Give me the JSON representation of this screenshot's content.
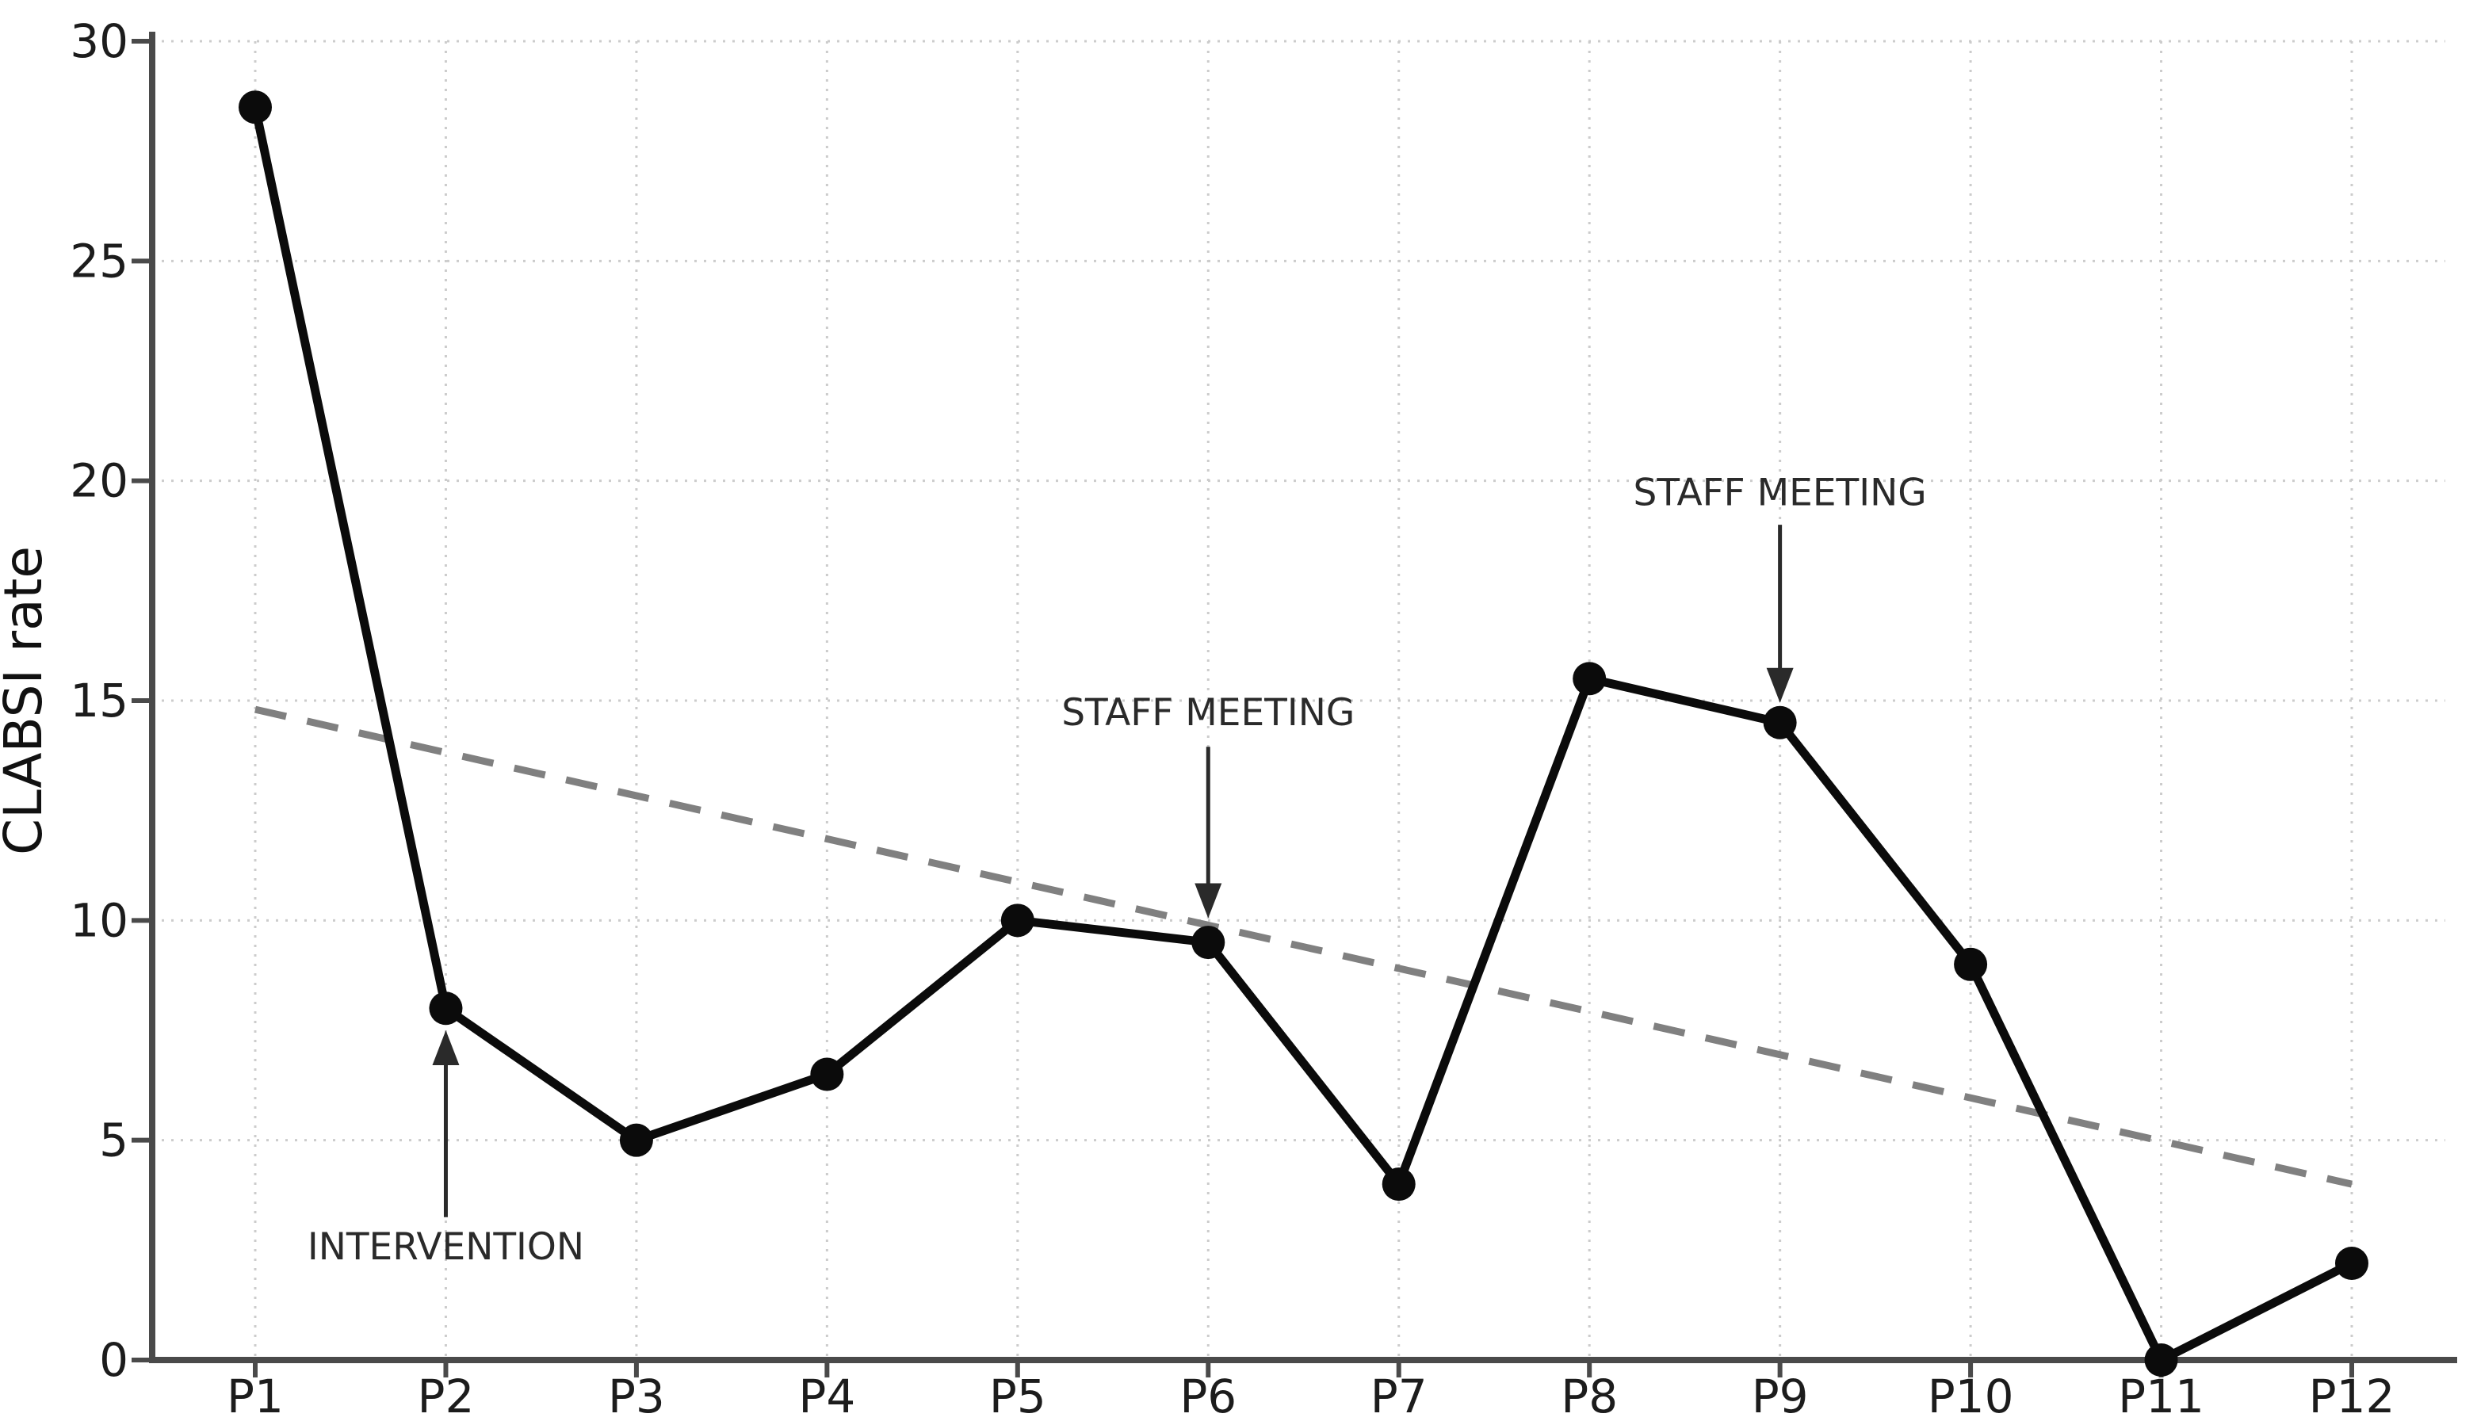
{
  "chart_data": {
    "type": "line",
    "title": "",
    "xlabel": "",
    "ylabel": "CLABSI rate",
    "categories": [
      "P1",
      "P2",
      "P3",
      "P4",
      "P5",
      "P6",
      "P7",
      "P8",
      "P9",
      "P10",
      "P11",
      "P12"
    ],
    "series": [
      {
        "name": "CLABSI rate",
        "style": "solid-with-markers",
        "values": [
          28.5,
          8,
          5,
          6.5,
          10,
          9.5,
          4,
          15.5,
          14.5,
          9,
          0,
          2.2
        ]
      }
    ],
    "trend_line": {
      "style": "dashed",
      "from_category": "P1",
      "from_value": 14.8,
      "to_category": "P12",
      "to_value": 4.0
    },
    "ylim": [
      0,
      30
    ],
    "yticks": [
      0,
      5,
      10,
      15,
      20,
      25,
      30
    ],
    "grid": true,
    "grid_style": "dotted",
    "legend": "none",
    "annotations": [
      {
        "label": "INTERVENTION",
        "target_category": "P2",
        "direction": "up",
        "text_center_value": 2.6,
        "arrow_from_value": 3.25,
        "arrow_tip_value": 7.5
      },
      {
        "label": "STAFF MEETING",
        "target_category": "P6",
        "direction": "down",
        "text_center_value": 14.75,
        "arrow_from_value": 13.95,
        "arrow_tip_value": 10.05
      },
      {
        "label": "STAFF MEETING",
        "target_category": "P9",
        "direction": "down",
        "text_center_value": 19.75,
        "arrow_from_value": 19.0,
        "arrow_tip_value": 14.95
      }
    ],
    "colors": {
      "line": "#0b0b0b",
      "marker": "#0b0b0b",
      "trend": "#808080",
      "grid": "#cccccc",
      "spine": "#4a4a4a",
      "tick_text": "#1c1c1c",
      "annotation_text": "#2a2a2a",
      "background": "#ffffff"
    }
  }
}
